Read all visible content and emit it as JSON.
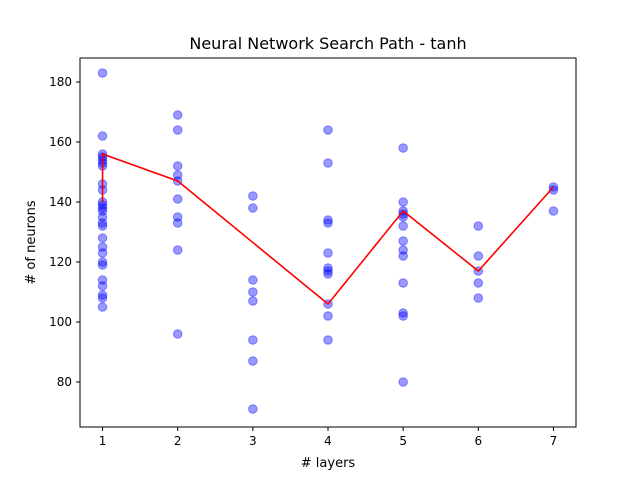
{
  "chart_data": {
    "type": "scatter",
    "title": "Neural Network Search Path - tanh",
    "xlabel": "# layers",
    "ylabel": "# of neurons",
    "xlim": [
      0.7,
      7.3
    ],
    "ylim": [
      65,
      188
    ],
    "xticks": [
      1,
      2,
      3,
      4,
      5,
      6,
      7
    ],
    "yticks": [
      80,
      100,
      120,
      140,
      160,
      180
    ],
    "grid": false,
    "legend": "none",
    "series": [
      {
        "type": "scatter",
        "color": "#0000ff",
        "alpha": 0.4,
        "points": [
          [
            1,
            183
          ],
          [
            1,
            162
          ],
          [
            1,
            156
          ],
          [
            1,
            155
          ],
          [
            1,
            154
          ],
          [
            1,
            153
          ],
          [
            1,
            152
          ],
          [
            1,
            146
          ],
          [
            1,
            144
          ],
          [
            1,
            140
          ],
          [
            1,
            139
          ],
          [
            1,
            138
          ],
          [
            1,
            137
          ],
          [
            1,
            135
          ],
          [
            1,
            133
          ],
          [
            1,
            132
          ],
          [
            1,
            128
          ],
          [
            1,
            125
          ],
          [
            1,
            123
          ],
          [
            1,
            120
          ],
          [
            1,
            119
          ],
          [
            1,
            114
          ],
          [
            1,
            112
          ],
          [
            1,
            109
          ],
          [
            1,
            108
          ],
          [
            1,
            105
          ],
          [
            2,
            169
          ],
          [
            2,
            164
          ],
          [
            2,
            152
          ],
          [
            2,
            149
          ],
          [
            2,
            147
          ],
          [
            2,
            141
          ],
          [
            2,
            135
          ],
          [
            2,
            133
          ],
          [
            2,
            124
          ],
          [
            2,
            96
          ],
          [
            3,
            142
          ],
          [
            3,
            138
          ],
          [
            3,
            114
          ],
          [
            3,
            110
          ],
          [
            3,
            107
          ],
          [
            3,
            94
          ],
          [
            3,
            87
          ],
          [
            3,
            71
          ],
          [
            4,
            164
          ],
          [
            4,
            153
          ],
          [
            4,
            134
          ],
          [
            4,
            133
          ],
          [
            4,
            123
          ],
          [
            4,
            118
          ],
          [
            4,
            117
          ],
          [
            4,
            116
          ],
          [
            4,
            106
          ],
          [
            4,
            102
          ],
          [
            4,
            94
          ],
          [
            5,
            158
          ],
          [
            5,
            140
          ],
          [
            5,
            137
          ],
          [
            5,
            136
          ],
          [
            5,
            135
          ],
          [
            5,
            132
          ],
          [
            5,
            127
          ],
          [
            5,
            124
          ],
          [
            5,
            122
          ],
          [
            5,
            113
          ],
          [
            5,
            103
          ],
          [
            5,
            102
          ],
          [
            5,
            80
          ],
          [
            6,
            132
          ],
          [
            6,
            122
          ],
          [
            6,
            117
          ],
          [
            6,
            113
          ],
          [
            6,
            108
          ],
          [
            7,
            145
          ],
          [
            7,
            144
          ],
          [
            7,
            137
          ]
        ]
      },
      {
        "type": "line",
        "color": "#ff0000",
        "points": [
          [
            1,
            140
          ],
          [
            1,
            156
          ],
          [
            2,
            147
          ],
          [
            4,
            106
          ],
          [
            5,
            137
          ],
          [
            6,
            117
          ],
          [
            7,
            145
          ]
        ]
      }
    ]
  }
}
